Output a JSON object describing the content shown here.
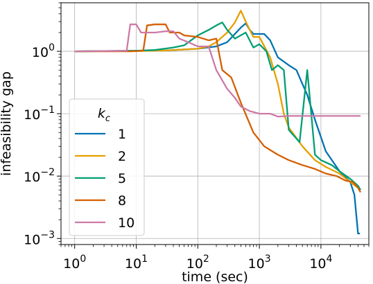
{
  "chart_data": {
    "type": "line",
    "xlabel": "time (sec)",
    "ylabel": "infeasibility gap",
    "xscale": "log",
    "yscale": "log",
    "xlim": [
      0.6,
      60000
    ],
    "ylim": [
      0.0008,
      6
    ],
    "grid": true,
    "x_ticks": [
      {
        "value": 1,
        "base": "10",
        "exp": "0"
      },
      {
        "value": 10,
        "base": "10",
        "exp": "1"
      },
      {
        "value": 100,
        "base": "10",
        "exp": "2"
      },
      {
        "value": 1000,
        "base": "10",
        "exp": "3"
      },
      {
        "value": 10000,
        "base": "10",
        "exp": "4"
      }
    ],
    "y_ticks": [
      {
        "value": 0.001,
        "base": "10",
        "exp": "−3"
      },
      {
        "value": 0.01,
        "base": "10",
        "exp": "−2"
      },
      {
        "value": 0.1,
        "base": "10",
        "exp": "−1"
      },
      {
        "value": 1,
        "base": "10",
        "exp": "0"
      }
    ],
    "legend": {
      "title_base": "k",
      "title_sub": "c",
      "placement": "lower-left"
    },
    "series": [
      {
        "name": "1",
        "color": "#0072b2",
        "points": [
          [
            1,
            1.0
          ],
          [
            10,
            1.02
          ],
          [
            30,
            1.03
          ],
          [
            100,
            1.1
          ],
          [
            200,
            1.2
          ],
          [
            300,
            1.4
          ],
          [
            500,
            2.4
          ],
          [
            600,
            2.8
          ],
          [
            700,
            2.2
          ],
          [
            800,
            1.9
          ],
          [
            1000,
            1.9
          ],
          [
            1200,
            1.9
          ],
          [
            1500,
            1.5
          ],
          [
            2000,
            0.8
          ],
          [
            3000,
            0.6
          ],
          [
            4000,
            0.5
          ],
          [
            5000,
            0.3
          ],
          [
            6000,
            0.2
          ],
          [
            8000,
            0.08
          ],
          [
            12000,
            0.025
          ],
          [
            20000,
            0.012
          ],
          [
            30000,
            0.008
          ],
          [
            35000,
            0.005
          ],
          [
            40000,
            0.0012
          ],
          [
            43000,
            0.0012
          ]
        ]
      },
      {
        "name": "2",
        "color": "#e69f00",
        "points": [
          [
            1,
            1.0
          ],
          [
            10,
            1.01
          ],
          [
            30,
            1.03
          ],
          [
            100,
            1.1
          ],
          [
            150,
            1.2
          ],
          [
            200,
            1.4
          ],
          [
            300,
            2.0
          ],
          [
            400,
            2.9
          ],
          [
            500,
            4.5
          ],
          [
            600,
            3.0
          ],
          [
            700,
            2.2
          ],
          [
            800,
            1.7
          ],
          [
            1000,
            1.7
          ],
          [
            1500,
            0.8
          ],
          [
            2000,
            0.3
          ],
          [
            2500,
            0.1
          ],
          [
            3000,
            0.06
          ],
          [
            5000,
            0.03
          ],
          [
            8000,
            0.018
          ],
          [
            12000,
            0.014
          ],
          [
            20000,
            0.011
          ],
          [
            30000,
            0.008
          ],
          [
            40000,
            0.0065
          ],
          [
            44000,
            0.006
          ]
        ]
      },
      {
        "name": "5",
        "color": "#009e73",
        "points": [
          [
            1,
            1.0
          ],
          [
            10,
            1.02
          ],
          [
            20,
            1.05
          ],
          [
            40,
            1.15
          ],
          [
            60,
            1.25
          ],
          [
            100,
            1.8
          ],
          [
            150,
            2.2
          ],
          [
            200,
            2.6
          ],
          [
            250,
            2.9
          ],
          [
            300,
            2.2
          ],
          [
            400,
            1.6
          ],
          [
            600,
            2.0
          ],
          [
            800,
            1.15
          ],
          [
            1000,
            1.3
          ],
          [
            1300,
            1.0
          ],
          [
            1600,
            0.5
          ],
          [
            2000,
            0.6
          ],
          [
            2500,
            0.5
          ],
          [
            3000,
            0.055
          ],
          [
            4500,
            0.035
          ],
          [
            6000,
            0.5
          ],
          [
            8000,
            0.022
          ],
          [
            10000,
            0.018
          ],
          [
            15000,
            0.015
          ],
          [
            20000,
            0.012
          ],
          [
            30000,
            0.009
          ],
          [
            40000,
            0.007
          ],
          [
            44000,
            0.006
          ]
        ]
      },
      {
        "name": "8",
        "color": "#d55e00",
        "points": [
          [
            1,
            1.0
          ],
          [
            8,
            1.0
          ],
          [
            13,
            1.02
          ],
          [
            15,
            2.6
          ],
          [
            20,
            2.7
          ],
          [
            30,
            2.7
          ],
          [
            35,
            2.0
          ],
          [
            50,
            2.0
          ],
          [
            60,
            1.8
          ],
          [
            100,
            1.7
          ],
          [
            150,
            1.5
          ],
          [
            200,
            1.6
          ],
          [
            250,
            0.5
          ],
          [
            350,
            0.38
          ],
          [
            500,
            0.15
          ],
          [
            800,
            0.05
          ],
          [
            1200,
            0.03
          ],
          [
            2000,
            0.022
          ],
          [
            3000,
            0.018
          ],
          [
            5000,
            0.015
          ],
          [
            8000,
            0.013
          ],
          [
            12000,
            0.011
          ],
          [
            18000,
            0.01
          ],
          [
            25000,
            0.0085
          ],
          [
            33000,
            0.008
          ],
          [
            40000,
            0.0065
          ],
          [
            44000,
            0.0055
          ]
        ]
      },
      {
        "name": "10",
        "color": "#cc79a7",
        "points": [
          [
            1,
            1.0
          ],
          [
            7,
            1.02
          ],
          [
            8,
            2.7
          ],
          [
            10,
            2.7
          ],
          [
            12,
            2.0
          ],
          [
            20,
            2.0
          ],
          [
            30,
            2.1
          ],
          [
            40,
            2.1
          ],
          [
            50,
            1.6
          ],
          [
            70,
            1.4
          ],
          [
            100,
            1.2
          ],
          [
            150,
            1.2
          ],
          [
            200,
            0.5
          ],
          [
            300,
            0.25
          ],
          [
            400,
            0.18
          ],
          [
            500,
            0.13
          ],
          [
            700,
            0.11
          ],
          [
            1000,
            0.1
          ],
          [
            1500,
            0.1
          ],
          [
            2000,
            0.09
          ],
          [
            3000,
            0.092
          ],
          [
            5000,
            0.092
          ],
          [
            10000,
            0.092
          ],
          [
            20000,
            0.092
          ],
          [
            44000,
            0.092
          ]
        ]
      }
    ]
  }
}
